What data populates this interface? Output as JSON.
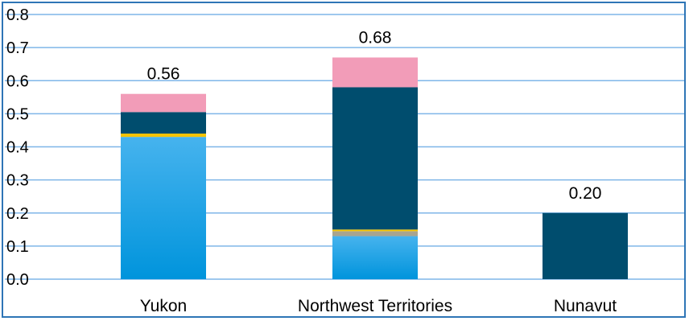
{
  "chart_data": {
    "type": "bar",
    "stacked": true,
    "categories": [
      "Yukon",
      "Northwest Territories",
      "Nunavut"
    ],
    "series": [
      {
        "color": "#1ea0e6",
        "values": [
          0.43,
          0.13,
          0.0
        ]
      },
      {
        "color": "#a9a48f",
        "values": [
          0.0,
          0.015,
          0.0
        ]
      },
      {
        "color": "#f5c400",
        "values": [
          0.01,
          0.005,
          0.0
        ]
      },
      {
        "color": "#004d6e",
        "values": [
          0.065,
          0.43,
          0.2
        ]
      },
      {
        "color": "#f29cb8",
        "values": [
          0.055,
          0.09,
          0.0
        ]
      }
    ],
    "totals_labels": [
      "0.56",
      "0.68",
      "0.20"
    ],
    "ylim": [
      0,
      0.8
    ],
    "yticks": [
      "0.0",
      "0.1",
      "0.2",
      "0.3",
      "0.4",
      "0.5",
      "0.6",
      "0.7",
      "0.8"
    ],
    "grid": true,
    "gridline_color": "#7fb6e8"
  }
}
